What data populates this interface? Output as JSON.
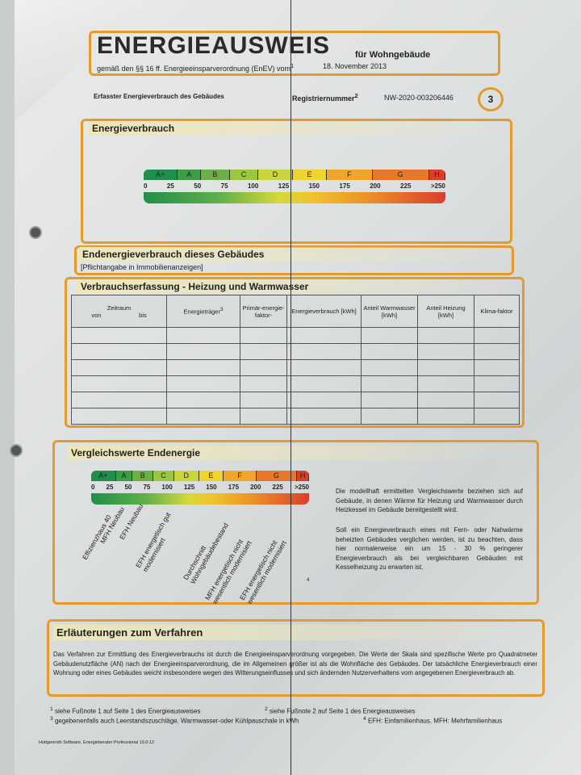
{
  "header": {
    "title": "ENERGIEAUSWEIS",
    "subtitle": "für Wohngebäude",
    "legal": "gemäß den §§ 16 ff. Energieeinsparverordnung (EnEV) vom",
    "legal_sup": "1",
    "date": "18. November 2013"
  },
  "info": {
    "label": "Erfasster Energieverbrauch des Gebäudes",
    "reg_label": "Registriernummer",
    "reg_sup": "2",
    "reg_number": "NW-2020-003206446",
    "page": "3"
  },
  "section1": {
    "title": "Energieverbrauch"
  },
  "scale": {
    "classes": [
      "A+",
      "A",
      "B",
      "C",
      "D",
      "E",
      "F",
      "G",
      "H"
    ],
    "ticks": [
      "0",
      "25",
      "50",
      "75",
      "100",
      "125",
      "150",
      "175",
      "200",
      "225",
      ">250"
    ]
  },
  "section2": {
    "title": "Endenergieverbrauch dieses Gebäudes",
    "note": "[Pflichtangabe in Immobilienanzeigen]"
  },
  "section3": {
    "title": "Verbrauchserfassung - Heizung und Warmwasser",
    "columns": {
      "zeitraum": "Zeitraum",
      "von": "von",
      "bis": "bis",
      "traeger": "Energieträger",
      "traeger_sup": "3",
      "primaer": "Primär-energie-faktor-",
      "verbrauch": "Energieverbrauch [kWh]",
      "warmwasser": "Anteil Warmwasser [kWh]",
      "heizung": "Anteil Heizung [kWh]",
      "klima": "Klima-faktor"
    }
  },
  "section4": {
    "title": "Vergleichswerte Endenergie",
    "references": [
      "Effizienzhaus 40",
      "MFH Neubau",
      "EFH Neubau",
      "EFH energetisch gut modernisiert",
      "Durchschnitt Wohngebäudebestand",
      "MFH energetisch nicht wesentlich modernisiert",
      "EFH energetisch nicht wesentlich modernisiert"
    ],
    "footnote_mark": "4",
    "text1": "Die modellhaft ermittelten Vergleichswerte beziehen sich auf Gebäude, in denen Wärme für Heizung und Warmwasser durch Heizkessel im Gebäude bereitgestellt wird.",
    "text2": "Soll ein Energieverbrauch eines mit Fern- oder Nahwärme beheizten Gebäudes verglichen werden, ist zu beachten, dass hier normalerweise ein um 15 - 30 % geringerer Energieverbrauch als bei vergleichbaren Gebäuden mit Kesselheizung zu erwarten ist."
  },
  "section5": {
    "title": "Erläuterungen zum Verfahren",
    "text": "Das Verfahren zur Ermittlung des Energieverbrauchs ist durch die Energieeinsparverordnung vorgegeben. Die Werte der Skala sind spezifische Werte pro Quadratmeter Gebäudenutzfläche (AN) nach der Energieeinsparverordnung, die im Allgemeinen größer ist als die Wohnfläche des Gebäudes. Der tatsächliche Energieverbrauch einer Wohnung oder eines Gebäudes weicht insbesondere wegen des Witterungseinflusses und sich ändernden Nutzerverhaltens vom angegebenen Energieverbrauch ab."
  },
  "footnotes": [
    {
      "n": "1",
      "t": "siehe Fußnote 1 auf Seite 1 des Energieausweises"
    },
    {
      "n": "2",
      "t": "siehe Fußnote 2 auf Seite 1 des Energieausweises"
    },
    {
      "n": "3",
      "t": "gegebenenfalls auch Leerstandszuschläge, Warmwasser-oder Kühlpauschale in kWh"
    },
    {
      "n": "4",
      "t": "EFH: Einfamilienhaus, MFH: Mehrfamilienhaus"
    }
  ],
  "software": "Hottgenroth Software, Energieberater Professional 10.0.12",
  "colors": {
    "frame": "#e59a2c",
    "class_green": "#1f8f4b",
    "class_red": "#d9402a"
  }
}
